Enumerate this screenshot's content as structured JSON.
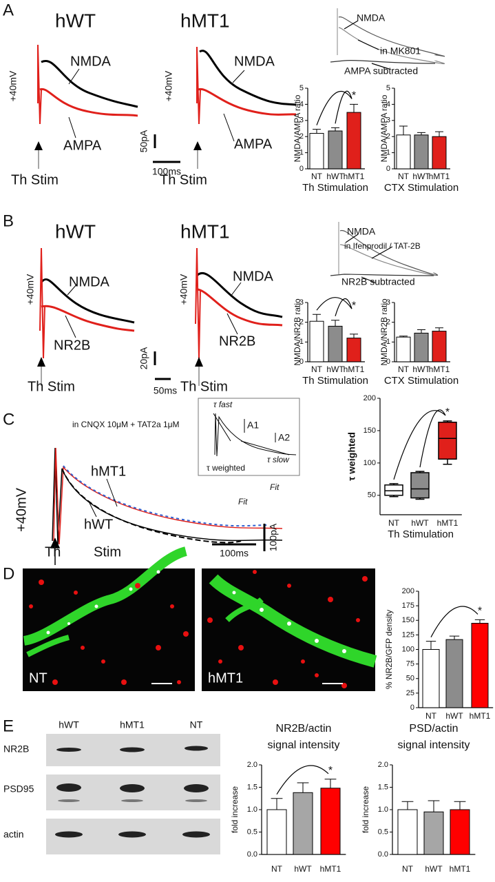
{
  "panels": {
    "A": {
      "letter": "A",
      "left_title": "hWT",
      "right_title": "hMT1",
      "left_nmda": "NMDA",
      "left_ampa": "AMPA",
      "right_nmda": "NMDA",
      "right_ampa": "AMPA",
      "left_voltage": "+40mV",
      "right_voltage": "+40mV",
      "left_stim": "Th Stim",
      "right_stim": "Th Stim",
      "scale_current": "50pA",
      "scale_time": "100ms",
      "inset_nmda": "NMDA",
      "inset_drug": "in MK801",
      "inset_subtracted": "AMPA subtracted"
    },
    "B": {
      "letter": "B",
      "left_title": "hWT",
      "right_title": "hMT1",
      "left_nmda": "NMDA",
      "left_nr2b": "NR2B",
      "right_nmda": "NMDA",
      "right_nr2b": "NR2B",
      "left_voltage": "+40mV",
      "right_voltage": "+40mV",
      "left_stim": "Th Stim",
      "right_stim": "Th Stim",
      "scale_current": "20pA",
      "scale_time": "50ms",
      "inset_nmda": "NMDA",
      "inset_drug": "in Ifenprodil / TAT-2B",
      "inset_subtracted": "NR2B subtracted"
    },
    "C": {
      "letter": "C",
      "condition": "in CNQX 10μM + TAT2a 1μM",
      "trace_mt": "hMT1",
      "trace_wt": "hWT",
      "voltage": "+40mV",
      "stim_a": "Th",
      "stim_b": "Stim",
      "fit_upper": "Fit",
      "fit_lower": "Fit",
      "scale_current": "100pA",
      "scale_time": "100ms",
      "inset_fast": "τ fast",
      "inset_a1": "A1",
      "inset_a2": "A2",
      "inset_slow": "τ slow",
      "inset_weighted": "τ weighted"
    },
    "D": {
      "letter": "D",
      "left_image": "NT",
      "right_image": "hMT1"
    },
    "E": {
      "letter": "E",
      "lanes": [
        "hWT",
        "hMT1",
        "NT"
      ],
      "rows": [
        "NR2B",
        "PSD95",
        "actin"
      ]
    }
  },
  "chart_data": [
    {
      "type": "bar",
      "y_label": "NMDA/AMPA ratio",
      "x_label": "Th Stimulation",
      "categories": [
        "NT",
        "hWT",
        "hMT1"
      ],
      "values": [
        2.2,
        2.35,
        3.5
      ],
      "errors": [
        0.25,
        0.2,
        0.5
      ],
      "colors": [
        "#ffffff",
        "#8c8c8c",
        "#e0201b"
      ],
      "ylim": [
        0,
        5
      ],
      "yticks": [
        0,
        1,
        2,
        3,
        4,
        5
      ],
      "annotation": "*"
    },
    {
      "type": "bar",
      "y_label": "NMDA/AMPA ratio",
      "x_label": "CTX Stimulation",
      "categories": [
        "NT",
        "hWT",
        "hMT1"
      ],
      "values": [
        2.1,
        2.1,
        2.0
      ],
      "errors": [
        0.55,
        0.15,
        0.3
      ],
      "colors": [
        "#ffffff",
        "#8c8c8c",
        "#e0201b"
      ],
      "ylim": [
        0,
        5
      ],
      "yticks": [
        0,
        1,
        2,
        3,
        4,
        5
      ]
    },
    {
      "type": "bar",
      "y_label": "NMDA/NR2B ratio",
      "x_label": "Th Stimulation",
      "categories": [
        "NT",
        "hWT",
        "hMT1"
      ],
      "values": [
        2.05,
        1.8,
        1.2
      ],
      "errors": [
        0.35,
        0.3,
        0.2
      ],
      "colors": [
        "#ffffff",
        "#8c8c8c",
        "#e0201b"
      ],
      "ylim": [
        0,
        3
      ],
      "yticks": [
        0,
        1,
        2,
        3
      ],
      "annotation": "*"
    },
    {
      "type": "bar",
      "y_label": "NMDA/NR2B ratio",
      "x_label": "CTX Stimulation",
      "categories": [
        "NT",
        "hWT",
        "hMT1"
      ],
      "values": [
        1.25,
        1.45,
        1.55
      ],
      "errors": [
        0.05,
        0.17,
        0.17
      ],
      "colors": [
        "#ffffff",
        "#8c8c8c",
        "#e0201b"
      ],
      "ylim": [
        0,
        3
      ],
      "yticks": [
        0,
        1,
        2,
        3
      ]
    },
    {
      "type": "box",
      "y_label": "τ weighted",
      "x_label": "Th Stimulation",
      "categories": [
        "NT",
        "hWT",
        "hMT1"
      ],
      "min": [
        48,
        44,
        98
      ],
      "q1": [
        50,
        46,
        106
      ],
      "median": [
        57,
        60,
        138
      ],
      "q3": [
        66,
        85,
        163
      ],
      "max": [
        68,
        87,
        165
      ],
      "colors": [
        "#ffffff",
        "#8c8c8c",
        "#e0201b"
      ],
      "ylim": [
        20,
        200
      ],
      "yticks": [
        50,
        100,
        150,
        200
      ],
      "annotation": "*"
    },
    {
      "type": "bar",
      "y_label": "% NR2B/GFP density",
      "categories": [
        "NT",
        "hWT",
        "hMT1"
      ],
      "values": [
        100,
        117,
        145
      ],
      "errors": [
        14,
        6,
        6
      ],
      "colors": [
        "#ffffff",
        "#8c8c8c",
        "#ff0000"
      ],
      "ylim": [
        0,
        200
      ],
      "yticks": [
        0,
        25,
        50,
        75,
        100,
        125,
        150,
        175,
        200
      ],
      "annotation": "*"
    },
    {
      "type": "bar",
      "title": [
        "NR2B/actin",
        "signal intensity"
      ],
      "y_label": "fold increase",
      "categories": [
        "NT",
        "hWT",
        "hMT1"
      ],
      "values": [
        1.0,
        1.38,
        1.48
      ],
      "errors": [
        0.25,
        0.22,
        0.2
      ],
      "colors": [
        "#ffffff",
        "#a6a6a6",
        "#ff0000"
      ],
      "ylim": [
        0,
        2
      ],
      "yticks": [
        {
          "value": 0,
          "label": "0.0"
        },
        {
          "value": 0.5,
          "label": "0.5"
        },
        {
          "value": 1,
          "label": "1.0"
        },
        {
          "value": 1.5,
          "label": "1.5"
        },
        {
          "value": 2,
          "label": "2.0"
        }
      ],
      "annotation": "*"
    },
    {
      "type": "bar",
      "title": [
        "PSD/actin",
        "signal intensity"
      ],
      "y_label": "fold increase",
      "categories": [
        "NT",
        "hWT",
        "hMT1"
      ],
      "values": [
        1.0,
        0.95,
        1.0
      ],
      "errors": [
        0.18,
        0.25,
        0.18
      ],
      "colors": [
        "#ffffff",
        "#a6a6a6",
        "#ff0000"
      ],
      "ylim": [
        0,
        2
      ],
      "yticks": [
        {
          "value": 0,
          "label": "0.0"
        },
        {
          "value": 0.5,
          "label": "0.5"
        },
        {
          "value": 1,
          "label": "1.0"
        },
        {
          "value": 1.5,
          "label": "1.5"
        },
        {
          "value": 2,
          "label": "2.0"
        }
      ]
    }
  ]
}
